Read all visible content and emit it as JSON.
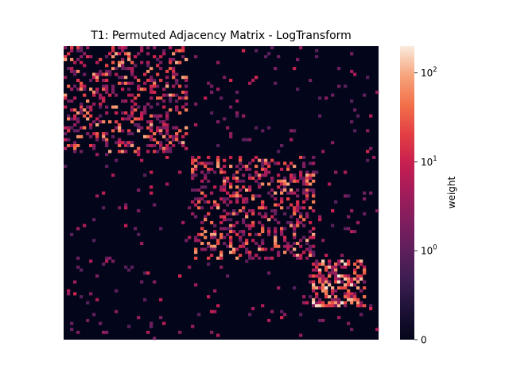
{
  "chart_data": {
    "type": "heatmap",
    "title": "T1: Permuted Adjacency Matrix - LogTransform",
    "xlabel": "",
    "ylabel": "",
    "n_nodes": 99,
    "colormap": "rocket",
    "colorbar": {
      "label": "weight",
      "scale": "symlog",
      "range": [
        0,
        200
      ],
      "ticks": [
        {
          "value": 0,
          "base": "0",
          "exp": ""
        },
        {
          "value": 1,
          "base": "10",
          "exp": "0"
        },
        {
          "value": 10,
          "base": "10",
          "exp": "1"
        },
        {
          "value": 100,
          "base": "10",
          "exp": "2"
        }
      ]
    },
    "blocks": [
      {
        "rows": [
          0,
          35
        ],
        "cols": [
          0,
          38
        ],
        "density": 0.34
      },
      {
        "rows": [
          37,
          71
        ],
        "cols": [
          40,
          78
        ],
        "density": 0.34
      },
      {
        "rows": [
          72,
          87
        ],
        "cols": [
          78,
          94
        ],
        "density": 0.55
      }
    ],
    "background_density": 0.035,
    "seed": 11
  }
}
